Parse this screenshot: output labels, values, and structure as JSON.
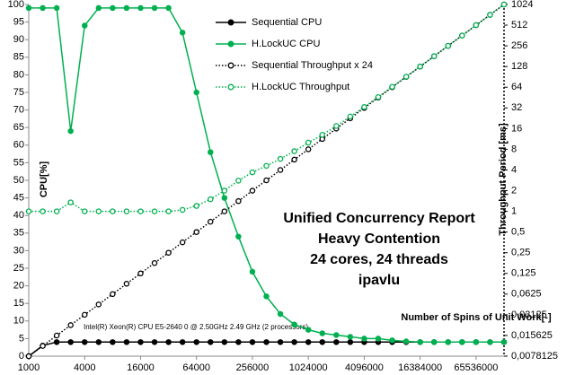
{
  "chart_data": {
    "type": "line",
    "title": [
      "Unified Concurrency Report",
      "Heavy Contention",
      "24 cores, 24 threads",
      "ipavlu"
    ],
    "xlabel": "Number of Spins of Unit Work[-]",
    "ylabel": "CPU[%]",
    "y2label": "Throughput Period [ms]",
    "annotations": [
      "Intel(R) Xeon(R) CPU E5-2640 0 @ 2.50GHz   2.49 GHz  (2 processors)"
    ],
    "xscale": "log",
    "y2scale": "log",
    "x": [
      1000,
      1414,
      2000,
      2828,
      4000,
      5657,
      8000,
      11314,
      16000,
      22627,
      32000,
      45255,
      64000,
      90510,
      128000,
      181019,
      256000,
      362039,
      512000,
      724077,
      1024000,
      1448155,
      2048000,
      2896309,
      4096000,
      5792619,
      8192000,
      11585237,
      16384000,
      23170475,
      32768000,
      46340950,
      65536000,
      92681900,
      131072000
    ],
    "xlim": [
      1000,
      131072000
    ],
    "xticks": [
      1000,
      4000,
      16000,
      64000,
      256000,
      1024000,
      4096000,
      16384000,
      65536000
    ],
    "ylim": [
      0,
      100
    ],
    "yticks": [
      0,
      5,
      10,
      15,
      20,
      25,
      30,
      35,
      40,
      45,
      50,
      55,
      60,
      65,
      70,
      75,
      80,
      85,
      90,
      95,
      100
    ],
    "y2lim": [
      0.0078125,
      1024
    ],
    "y2ticks": [
      {
        "value": 0.0078125,
        "label": "0,0078125"
      },
      {
        "value": 0.015625,
        "label": "0,015625"
      },
      {
        "value": 0.03125,
        "label": "0,03125"
      },
      {
        "value": 0.0625,
        "label": "0,0625"
      },
      {
        "value": 0.125,
        "label": "0,125"
      },
      {
        "value": 0.25,
        "label": "0,25"
      },
      {
        "value": 0.5,
        "label": "0,5"
      },
      1,
      2,
      4,
      8,
      16,
      32,
      64,
      128,
      256,
      512,
      1024
    ],
    "series": [
      {
        "name": "Sequential CPU",
        "color": "#000000",
        "style": "solid",
        "marker": "filled",
        "values": [
          0,
          3,
          4,
          4,
          4,
          4,
          4,
          4,
          4,
          4,
          4,
          4,
          4,
          4,
          4,
          4,
          4,
          4,
          4,
          4,
          4,
          4,
          4,
          4,
          4,
          4,
          4,
          4,
          4,
          4,
          4,
          4,
          4,
          4,
          4
        ]
      },
      {
        "name": "H.LockUC CPU",
        "color": "#00b050",
        "style": "solid",
        "marker": "filled",
        "values": [
          99,
          99,
          99,
          64,
          94,
          99,
          99,
          99,
          99,
          99,
          99,
          92,
          75,
          58,
          45,
          34,
          24,
          17,
          12,
          9,
          7.5,
          6.5,
          6,
          5.5,
          5,
          5,
          4.5,
          4.2,
          4,
          4,
          4,
          4,
          4,
          4,
          4
        ]
      },
      {
        "name": "Sequential Throughput x 24",
        "color": "#000000",
        "style": "dotted",
        "marker": "hollow",
        "axis": "y2",
        "values": [
          0.0078,
          0.011,
          0.0156,
          0.0221,
          0.03125,
          0.0442,
          0.0625,
          0.0884,
          0.125,
          0.177,
          0.25,
          0.354,
          0.5,
          0.707,
          1,
          1.41,
          2,
          2.83,
          4,
          5.66,
          8,
          11.3,
          16,
          22.6,
          32,
          45.3,
          64,
          90.5,
          128,
          181,
          256,
          362,
          512,
          724,
          1024
        ]
      },
      {
        "name": "H.LockUC Throughput",
        "color": "#00b050",
        "style": "dotted",
        "marker": "hollow",
        "axis": "y2",
        "values": [
          1,
          1,
          1,
          1.35,
          1,
          1,
          1,
          1,
          1,
          1,
          1,
          1.05,
          1.2,
          1.5,
          2,
          2.8,
          3.7,
          4.6,
          5.8,
          7.5,
          10,
          13,
          17.5,
          24,
          33,
          46,
          65,
          91,
          128,
          181,
          256,
          362,
          512,
          724,
          1024
        ]
      }
    ]
  }
}
